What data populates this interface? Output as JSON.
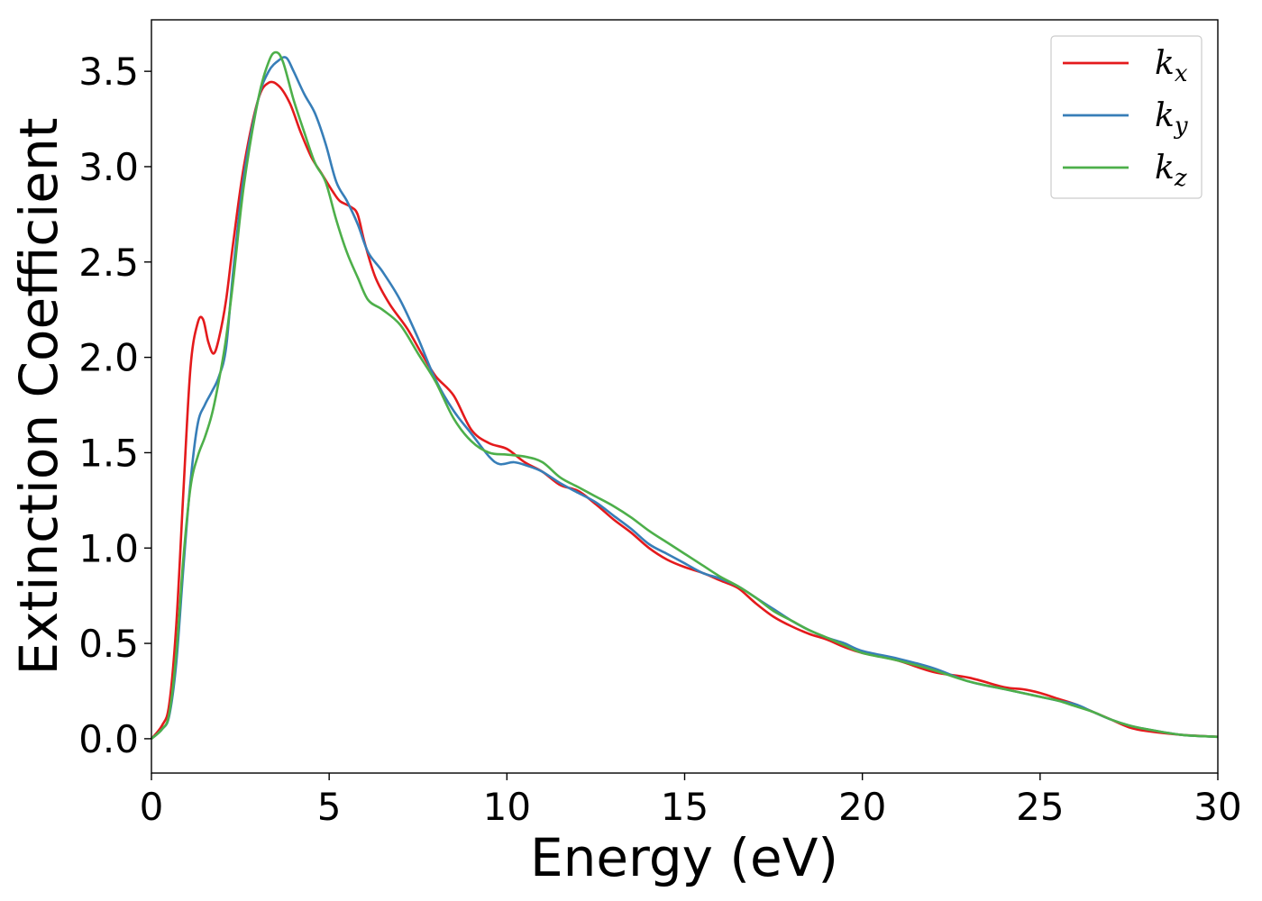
{
  "chart_data": {
    "type": "line",
    "title": "",
    "xlabel": "Energy (eV)",
    "ylabel": "Extinction Coefficient",
    "xlim": [
      0,
      30
    ],
    "ylim": [
      -0.18,
      3.77
    ],
    "xticks": [
      0,
      5,
      10,
      15,
      20,
      25,
      30
    ],
    "xtick_labels": [
      "0",
      "5",
      "10",
      "15",
      "20",
      "25",
      "30"
    ],
    "yticks": [
      0.0,
      0.5,
      1.0,
      1.5,
      2.0,
      2.5,
      3.0,
      3.5
    ],
    "ytick_labels": [
      "0.0",
      "0.5",
      "1.0",
      "1.5",
      "2.0",
      "2.5",
      "3.0",
      "3.5"
    ],
    "grid": false,
    "legend_position": "top-right",
    "series": [
      {
        "name": "k_x",
        "base": "k",
        "sub": "x",
        "color": "#e41a1c",
        "x": [
          0,
          0.3,
          0.5,
          0.7,
          0.9,
          1.1,
          1.3,
          1.45,
          1.6,
          1.75,
          1.9,
          2.1,
          2.3,
          2.6,
          3.0,
          3.3,
          3.6,
          3.9,
          4.2,
          4.5,
          4.8,
          5.1,
          5.3,
          5.6,
          5.8,
          6.0,
          6.3,
          6.7,
          7.2,
          7.6,
          8.0,
          8.5,
          9.0,
          9.5,
          10.0,
          10.5,
          11.0,
          11.5,
          12.0,
          12.5,
          13.0,
          13.5,
          14.0,
          14.5,
          15.0,
          15.5,
          16.0,
          16.5,
          17.0,
          17.5,
          18.0,
          18.5,
          19.0,
          19.5,
          20.0,
          21.0,
          22.0,
          23.0,
          24.0,
          24.5,
          25.0,
          25.5,
          26.0,
          26.5,
          27.0,
          27.5,
          28.0,
          29.0,
          30.0
        ],
        "values": [
          0,
          0.07,
          0.18,
          0.6,
          1.3,
          1.95,
          2.18,
          2.2,
          2.08,
          2.02,
          2.1,
          2.3,
          2.6,
          3.0,
          3.35,
          3.44,
          3.42,
          3.33,
          3.18,
          3.05,
          2.96,
          2.87,
          2.82,
          2.79,
          2.75,
          2.6,
          2.42,
          2.28,
          2.15,
          2.02,
          1.9,
          1.8,
          1.62,
          1.55,
          1.52,
          1.45,
          1.4,
          1.33,
          1.3,
          1.23,
          1.15,
          1.08,
          1.0,
          0.94,
          0.9,
          0.87,
          0.83,
          0.79,
          0.71,
          0.64,
          0.59,
          0.55,
          0.52,
          0.48,
          0.45,
          0.41,
          0.35,
          0.32,
          0.27,
          0.26,
          0.24,
          0.21,
          0.18,
          0.14,
          0.1,
          0.06,
          0.04,
          0.02,
          0.01
        ]
      },
      {
        "name": "k_y",
        "base": "k",
        "sub": "y",
        "color": "#377eb8",
        "x": [
          0,
          0.3,
          0.5,
          0.7,
          0.9,
          1.1,
          1.3,
          1.5,
          1.7,
          1.9,
          2.1,
          2.3,
          2.6,
          3.0,
          3.3,
          3.6,
          3.8,
          4.0,
          4.3,
          4.6,
          4.9,
          5.2,
          5.5,
          5.8,
          6.1,
          6.5,
          7.0,
          7.5,
          8.0,
          8.5,
          9.0,
          9.5,
          9.8,
          10.2,
          10.6,
          11.0,
          11.5,
          12.0,
          12.5,
          13.0,
          13.5,
          14.0,
          14.5,
          15.0,
          15.5,
          16.0,
          16.5,
          17.0,
          17.5,
          18.0,
          18.5,
          19.0,
          19.5,
          20.0,
          21.0,
          22.0,
          23.0,
          24.0,
          25.0,
          25.5,
          26.0,
          26.5,
          27.0,
          27.5,
          28.0,
          29.0,
          30.0
        ],
        "values": [
          0,
          0.05,
          0.12,
          0.4,
          0.9,
          1.35,
          1.65,
          1.75,
          1.82,
          1.9,
          2.05,
          2.45,
          2.95,
          3.35,
          3.5,
          3.56,
          3.57,
          3.5,
          3.38,
          3.28,
          3.12,
          2.92,
          2.82,
          2.7,
          2.55,
          2.45,
          2.3,
          2.1,
          1.88,
          1.72,
          1.6,
          1.48,
          1.44,
          1.45,
          1.43,
          1.4,
          1.34,
          1.29,
          1.24,
          1.17,
          1.1,
          1.02,
          0.97,
          0.92,
          0.87,
          0.84,
          0.8,
          0.74,
          0.68,
          0.62,
          0.57,
          0.53,
          0.5,
          0.46,
          0.42,
          0.37,
          0.3,
          0.26,
          0.22,
          0.2,
          0.18,
          0.14,
          0.1,
          0.07,
          0.05,
          0.02,
          0.01
        ]
      },
      {
        "name": "k_z",
        "base": "k",
        "sub": "z",
        "color": "#4daf4a",
        "x": [
          0,
          0.3,
          0.5,
          0.7,
          0.9,
          1.1,
          1.3,
          1.5,
          1.7,
          1.9,
          2.1,
          2.3,
          2.6,
          3.0,
          3.3,
          3.5,
          3.7,
          4.0,
          4.3,
          4.6,
          4.9,
          5.2,
          5.5,
          5.8,
          6.1,
          6.5,
          7.0,
          7.5,
          8.0,
          8.5,
          9.0,
          9.5,
          10.0,
          10.5,
          11.0,
          11.5,
          12.0,
          12.5,
          13.0,
          13.5,
          14.0,
          14.5,
          15.0,
          15.5,
          16.0,
          16.5,
          17.0,
          17.5,
          18.0,
          18.5,
          19.0,
          19.5,
          20.0,
          21.0,
          22.0,
          23.0,
          24.0,
          25.0,
          25.5,
          26.0,
          26.5,
          27.0,
          27.5,
          28.0,
          29.0,
          30.0
        ],
        "values": [
          0,
          0.05,
          0.13,
          0.45,
          0.95,
          1.32,
          1.48,
          1.58,
          1.7,
          1.88,
          2.1,
          2.4,
          2.9,
          3.35,
          3.55,
          3.6,
          3.55,
          3.35,
          3.18,
          3.02,
          2.92,
          2.72,
          2.55,
          2.42,
          2.3,
          2.25,
          2.17,
          2.02,
          1.87,
          1.68,
          1.56,
          1.5,
          1.49,
          1.48,
          1.45,
          1.37,
          1.32,
          1.27,
          1.22,
          1.16,
          1.09,
          1.03,
          0.97,
          0.91,
          0.85,
          0.8,
          0.74,
          0.67,
          0.62,
          0.57,
          0.53,
          0.49,
          0.45,
          0.41,
          0.36,
          0.3,
          0.26,
          0.22,
          0.2,
          0.17,
          0.14,
          0.1,
          0.07,
          0.05,
          0.02,
          0.01
        ]
      }
    ]
  }
}
